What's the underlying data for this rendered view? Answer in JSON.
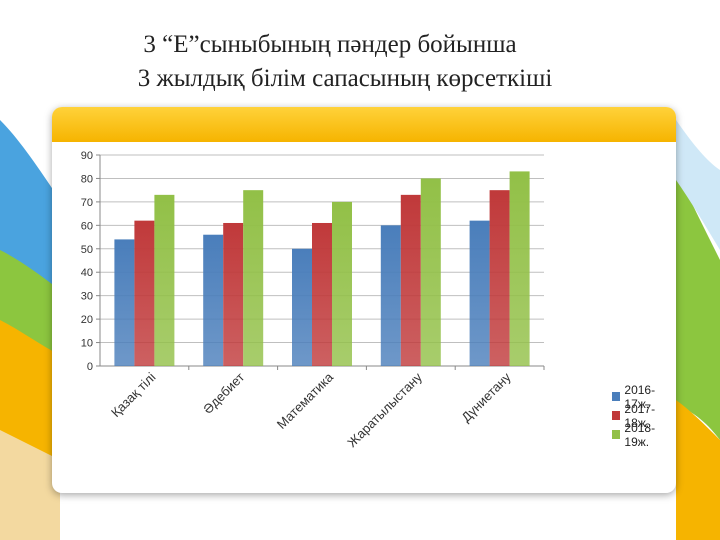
{
  "title": {
    "line1": "3 “Е”сыныбының пәндер бойынша",
    "line2": "3 жылдық білім сапасының көрсеткіші"
  },
  "chart_data": {
    "type": "bar",
    "categories": [
      "Қазақ тілі",
      "Әдебиет",
      "Математика",
      "Жаратылыстану",
      "Дүниетану"
    ],
    "series": [
      {
        "name": "2016-17ж.",
        "values": [
          54,
          56,
          50,
          60,
          62
        ],
        "color": "#4a7ebb"
      },
      {
        "name": "2017-18ж.",
        "values": [
          62,
          61,
          61,
          73,
          75
        ],
        "color": "#c0393a"
      },
      {
        "name": "2018-19ж.",
        "values": [
          73,
          75,
          70,
          80,
          83
        ],
        "color": "#92c047"
      }
    ],
    "ylim": [
      0,
      90
    ],
    "yticks": [
      0,
      10,
      20,
      30,
      40,
      50,
      60,
      70,
      80,
      90
    ],
    "grid": true,
    "legend_position": "right"
  }
}
